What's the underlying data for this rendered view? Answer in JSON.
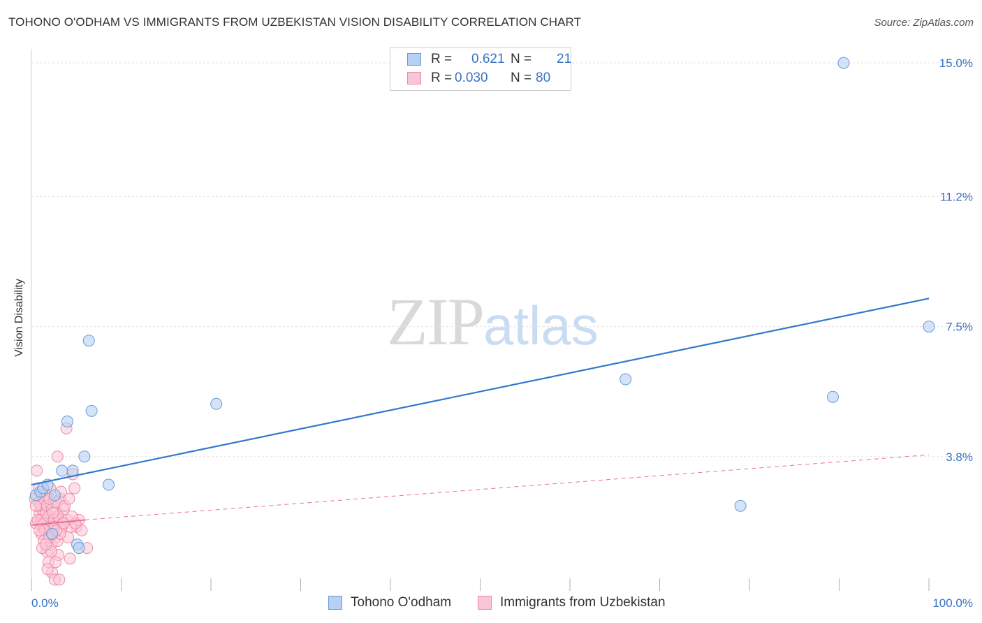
{
  "title": "TOHONO O'ODHAM VS IMMIGRANTS FROM UZBEKISTAN VISION DISABILITY CORRELATION CHART",
  "source": "Source: ZipAtlas.com",
  "watermark": {
    "zip": "ZIP",
    "atlas": "atlas"
  },
  "legend": {
    "series1": {
      "r_label": "R =",
      "r_value": "0.621",
      "n_label": "N =",
      "n_value": "21"
    },
    "series2": {
      "r_label": "R =",
      "r_value": "0.030",
      "n_label": "N =",
      "n_value": "80"
    }
  },
  "bottom_legend": {
    "series1": "Tohono O'odham",
    "series2": "Immigrants from Uzbekistan"
  },
  "colors": {
    "blue_fill": "#b7d0f3",
    "blue_stroke": "#6a9ad8",
    "blue_line": "#3377cc",
    "pink_fill": "#f9c6d5",
    "pink_stroke": "#ee8aaa",
    "pink_line": "#ec6f98",
    "grid": "#e3e3e3",
    "axis_text": "#3a72c4"
  },
  "chart_data": {
    "type": "scatter",
    "title": "TOHONO O'ODHAM VS IMMIGRANTS FROM UZBEKISTAN VISION DISABILITY CORRELATION CHART",
    "xlabel": "",
    "ylabel": "Vision Disability",
    "xlim": [
      0,
      100
    ],
    "ylim": [
      0,
      15.4
    ],
    "x_tick_labels": [
      "0.0%",
      "100.0%"
    ],
    "y_ticks": [
      3.8,
      7.5,
      11.2,
      15.0
    ],
    "y_tick_labels": [
      "3.8%",
      "7.5%",
      "11.2%",
      "15.0%"
    ],
    "series": [
      {
        "name": "Tohono O'odham",
        "points": [
          [
            0.5,
            2.7
          ],
          [
            1.0,
            2.8
          ],
          [
            1.3,
            2.9
          ],
          [
            1.8,
            3.0
          ],
          [
            2.3,
            1.6
          ],
          [
            2.6,
            2.7
          ],
          [
            3.4,
            3.4
          ],
          [
            4.0,
            4.8
          ],
          [
            4.6,
            3.4
          ],
          [
            5.1,
            1.3
          ],
          [
            5.3,
            1.2
          ],
          [
            5.9,
            3.8
          ],
          [
            6.4,
            7.1
          ],
          [
            6.7,
            5.1
          ],
          [
            8.6,
            3.0
          ],
          [
            20.6,
            5.3
          ],
          [
            66.2,
            6.0
          ],
          [
            79.0,
            2.4
          ],
          [
            89.3,
            5.5
          ],
          [
            90.5,
            15.0
          ],
          [
            100.0,
            7.5
          ]
        ],
        "trend": {
          "x": [
            0,
            100
          ],
          "y": [
            3.0,
            8.3
          ]
        }
      },
      {
        "name": "Immigrants from Uzbekistan",
        "points": [
          [
            0.4,
            2.6
          ],
          [
            0.6,
            3.4
          ],
          [
            0.8,
            2.5
          ],
          [
            0.9,
            2.2
          ],
          [
            1.0,
            1.9
          ],
          [
            1.1,
            1.6
          ],
          [
            1.2,
            2.3
          ],
          [
            1.3,
            1.8
          ],
          [
            1.4,
            1.4
          ],
          [
            1.5,
            2.0
          ],
          [
            1.6,
            2.7
          ],
          [
            1.7,
            1.1
          ],
          [
            1.8,
            2.4
          ],
          [
            1.9,
            0.8
          ],
          [
            2.0,
            1.7
          ],
          [
            2.1,
            2.1
          ],
          [
            2.2,
            1.3
          ],
          [
            2.3,
            0.5
          ],
          [
            2.4,
            1.9
          ],
          [
            2.5,
            2.5
          ],
          [
            2.6,
            0.3
          ],
          [
            2.7,
            1.5
          ],
          [
            2.8,
            2.2
          ],
          [
            2.9,
            3.8
          ],
          [
            3.0,
            1.0
          ],
          [
            3.1,
            2.0
          ],
          [
            3.2,
            2.6
          ],
          [
            3.4,
            1.8
          ],
          [
            3.6,
            2.3
          ],
          [
            3.9,
            4.6
          ],
          [
            4.1,
            1.5
          ],
          [
            4.3,
            0.9
          ],
          [
            4.6,
            3.3
          ],
          [
            4.8,
            2.9
          ],
          [
            5.0,
            1.8
          ],
          [
            5.3,
            2.0
          ],
          [
            5.6,
            1.7
          ],
          [
            6.2,
            1.2
          ],
          [
            0.5,
            1.9
          ],
          [
            0.7,
            2.0
          ],
          [
            0.8,
            2.9
          ],
          [
            1.0,
            2.4
          ],
          [
            1.1,
            2.0
          ],
          [
            1.2,
            1.2
          ],
          [
            1.3,
            2.6
          ],
          [
            1.4,
            1.9
          ],
          [
            1.5,
            1.7
          ],
          [
            1.6,
            2.2
          ],
          [
            1.7,
            2.4
          ],
          [
            1.8,
            0.6
          ],
          [
            1.9,
            2.1
          ],
          [
            2.0,
            1.5
          ],
          [
            2.1,
            2.9
          ],
          [
            2.2,
            1.1
          ],
          [
            2.3,
            2.3
          ],
          [
            2.4,
            1.6
          ],
          [
            2.5,
            2.0
          ],
          [
            2.6,
            1.8
          ],
          [
            2.7,
            0.8
          ],
          [
            2.8,
            2.5
          ],
          [
            2.9,
            1.4
          ],
          [
            3.0,
            2.1
          ],
          [
            3.2,
            1.6
          ],
          [
            3.3,
            2.8
          ],
          [
            3.5,
            1.9
          ],
          [
            3.7,
            2.4
          ],
          [
            4.0,
            2.0
          ],
          [
            4.2,
            2.6
          ],
          [
            4.4,
            1.8
          ],
          [
            4.9,
            1.9
          ],
          [
            0.5,
            2.4
          ],
          [
            0.9,
            1.7
          ],
          [
            1.2,
            2.8
          ],
          [
            1.6,
            1.3
          ],
          [
            2.0,
            2.6
          ],
          [
            2.4,
            2.2
          ],
          [
            2.8,
            1.7
          ],
          [
            3.1,
            0.3
          ],
          [
            3.6,
            1.9
          ],
          [
            4.5,
            2.1
          ]
        ],
        "trend_solid": {
          "x": [
            0,
            6.0
          ],
          "y": [
            1.85,
            2.0
          ]
        },
        "trend_dashed": {
          "x": [
            6.0,
            100
          ],
          "y": [
            2.0,
            3.85
          ]
        }
      }
    ]
  }
}
